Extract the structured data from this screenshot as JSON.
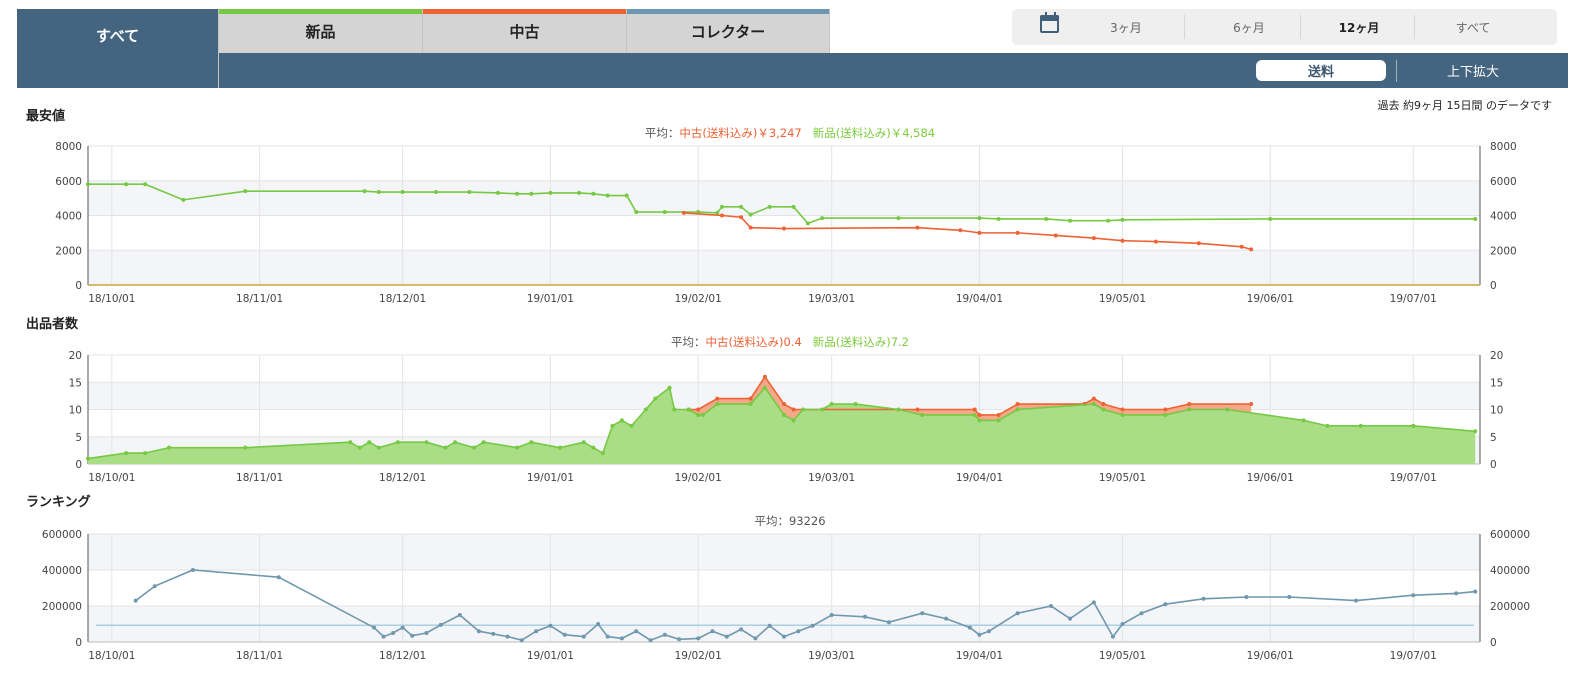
{
  "tabs": [
    {
      "label": "すべて",
      "color": "#446580"
    },
    {
      "label": "新品",
      "color": "#76c943"
    },
    {
      "label": "中古",
      "color": "#ee6234"
    },
    {
      "label": "コレクター",
      "color": "#6b98b0"
    }
  ],
  "period": {
    "items": [
      "3ヶ月",
      "6ヶ月",
      "12ヶ月",
      "すべて"
    ],
    "selected": "12ヶ月"
  },
  "toolbar": {
    "shipping_label": "送料",
    "zoom_label": "上下拡大"
  },
  "period_note": "過去 約9ヶ月 15日間 のデータです",
  "colors": {
    "new": "#76c943",
    "used": "#ee6234",
    "ranking": "#6f97ad",
    "avg_line": "#a9cfe0"
  },
  "sections": {
    "price": {
      "title": "最安値",
      "avg_prefix": "平均：",
      "avg_used": "中古(送料込み)￥3,247",
      "avg_new": "新品(送料込み)￥4,584"
    },
    "sellers": {
      "title": "出品者数",
      "avg_prefix": "平均：",
      "avg_used": "中古(送料込み)0.4",
      "avg_new": "新品(送料込み)7.2"
    },
    "ranking": {
      "title": "ランキング",
      "avg_text": "平均：93226"
    }
  },
  "chart_data": [
    {
      "type": "line",
      "title": "最安値",
      "x_type": "date",
      "x_ticks": [
        "2018-10-01",
        "2018-11-01",
        "2018-12-01",
        "2019-01-01",
        "2019-02-01",
        "2019-03-01",
        "2019-04-01",
        "2019-05-01",
        "2019-06-01",
        "2019-07-01"
      ],
      "x_tick_labels": [
        "18/10/01",
        "18/11/01",
        "18/12/01",
        "19/01/01",
        "19/02/01",
        "19/03/01",
        "19/04/01",
        "19/05/01",
        "19/06/01",
        "19/07/01"
      ],
      "xlim": [
        "2018-09-26",
        "2019-07-15"
      ],
      "ylim": [
        0,
        8000
      ],
      "y_ticks": [
        0,
        2000,
        4000,
        6000,
        8000
      ],
      "grid": true,
      "series": [
        {
          "name": "新品(送料込み)",
          "color": "#76c943",
          "points": [
            [
              "2018-09-26",
              5800
            ],
            [
              "2018-10-04",
              5800
            ],
            [
              "2018-10-08",
              5800
            ],
            [
              "2018-10-16",
              4900
            ],
            [
              "2018-10-29",
              5400
            ],
            [
              "2018-11-23",
              5400
            ],
            [
              "2018-11-26",
              5350
            ],
            [
              "2018-12-01",
              5350
            ],
            [
              "2018-12-08",
              5350
            ],
            [
              "2018-12-15",
              5350
            ],
            [
              "2018-12-21",
              5300
            ],
            [
              "2018-12-25",
              5250
            ],
            [
              "2018-12-28",
              5250
            ],
            [
              "2019-01-01",
              5300
            ],
            [
              "2019-01-07",
              5300
            ],
            [
              "2019-01-10",
              5250
            ],
            [
              "2019-01-13",
              5150
            ],
            [
              "2019-01-17",
              5150
            ],
            [
              "2019-01-19",
              4200
            ],
            [
              "2019-01-25",
              4200
            ],
            [
              "2019-02-01",
              4200
            ],
            [
              "2019-02-05",
              4150
            ],
            [
              "2019-02-06",
              4500
            ],
            [
              "2019-02-10",
              4500
            ],
            [
              "2019-02-12",
              4050
            ],
            [
              "2019-02-16",
              4500
            ],
            [
              "2019-02-21",
              4500
            ],
            [
              "2019-02-24",
              3550
            ],
            [
              "2019-02-27",
              3850
            ],
            [
              "2019-03-15",
              3850
            ],
            [
              "2019-04-01",
              3850
            ],
            [
              "2019-04-05",
              3800
            ],
            [
              "2019-04-15",
              3800
            ],
            [
              "2019-04-20",
              3700
            ],
            [
              "2019-04-28",
              3700
            ],
            [
              "2019-05-01",
              3750
            ],
            [
              "2019-06-01",
              3800
            ],
            [
              "2019-07-14",
              3800
            ]
          ]
        },
        {
          "name": "中古(送料込み)",
          "color": "#ee6234",
          "points": [
            [
              "2019-01-29",
              4150
            ],
            [
              "2019-02-06",
              4000
            ],
            [
              "2019-02-10",
              3900
            ],
            [
              "2019-02-12",
              3300
            ],
            [
              "2019-02-19",
              3250
            ],
            [
              "2019-03-19",
              3300
            ],
            [
              "2019-03-28",
              3150
            ],
            [
              "2019-04-01",
              3000
            ],
            [
              "2019-04-09",
              3000
            ],
            [
              "2019-04-17",
              2850
            ],
            [
              "2019-04-25",
              2700
            ],
            [
              "2019-05-01",
              2550
            ],
            [
              "2019-05-08",
              2500
            ],
            [
              "2019-05-17",
              2400
            ],
            [
              "2019-05-26",
              2200
            ],
            [
              "2019-05-28",
              2050
            ]
          ]
        }
      ]
    },
    {
      "type": "area",
      "title": "出品者数",
      "x_type": "date",
      "x_ticks": [
        "2018-10-01",
        "2018-11-01",
        "2018-12-01",
        "2019-01-01",
        "2019-02-01",
        "2019-03-01",
        "2019-04-01",
        "2019-05-01",
        "2019-06-01",
        "2019-07-01"
      ],
      "x_tick_labels": [
        "18/10/01",
        "18/11/01",
        "18/12/01",
        "19/01/01",
        "19/02/01",
        "19/03/01",
        "19/04/01",
        "19/05/01",
        "19/06/01",
        "19/07/01"
      ],
      "xlim": [
        "2018-09-26",
        "2019-07-15"
      ],
      "ylim": [
        0,
        20
      ],
      "y_ticks": [
        0,
        5,
        10,
        15,
        20
      ],
      "grid": true,
      "series": [
        {
          "name": "新品(送料込み)",
          "color": "#76c943",
          "stack": "base",
          "points": [
            [
              "2018-09-26",
              1
            ],
            [
              "2018-10-04",
              2
            ],
            [
              "2018-10-08",
              2
            ],
            [
              "2018-10-13",
              3
            ],
            [
              "2018-10-29",
              3
            ],
            [
              "2018-11-20",
              4
            ],
            [
              "2018-11-22",
              3
            ],
            [
              "2018-11-24",
              4
            ],
            [
              "2018-11-26",
              3
            ],
            [
              "2018-11-30",
              4
            ],
            [
              "2018-12-06",
              4
            ],
            [
              "2018-12-10",
              3
            ],
            [
              "2018-12-12",
              4
            ],
            [
              "2018-12-16",
              3
            ],
            [
              "2018-12-18",
              4
            ],
            [
              "2018-12-25",
              3
            ],
            [
              "2018-12-28",
              4
            ],
            [
              "2019-01-03",
              3
            ],
            [
              "2019-01-08",
              4
            ],
            [
              "2019-01-10",
              3
            ],
            [
              "2019-01-12",
              2
            ],
            [
              "2019-01-14",
              7
            ],
            [
              "2019-01-16",
              8
            ],
            [
              "2019-01-18",
              7
            ],
            [
              "2019-01-21",
              10
            ],
            [
              "2019-01-23",
              12
            ],
            [
              "2019-01-26",
              14
            ],
            [
              "2019-01-27",
              10
            ],
            [
              "2019-01-30",
              10
            ],
            [
              "2019-02-01",
              9
            ],
            [
              "2019-02-02",
              9
            ],
            [
              "2019-02-05",
              11
            ],
            [
              "2019-02-12",
              11
            ],
            [
              "2019-02-15",
              14
            ],
            [
              "2019-02-19",
              9
            ],
            [
              "2019-02-21",
              8
            ],
            [
              "2019-02-23",
              10
            ],
            [
              "2019-02-27",
              10
            ],
            [
              "2019-03-01",
              11
            ],
            [
              "2019-03-06",
              11
            ],
            [
              "2019-03-15",
              10
            ],
            [
              "2019-03-20",
              9
            ],
            [
              "2019-03-31",
              9
            ],
            [
              "2019-04-01",
              8
            ],
            [
              "2019-04-05",
              8
            ],
            [
              "2019-04-09",
              10
            ],
            [
              "2019-04-25",
              11
            ],
            [
              "2019-04-27",
              10
            ],
            [
              "2019-05-01",
              9
            ],
            [
              "2019-05-10",
              9
            ],
            [
              "2019-05-15",
              10
            ],
            [
              "2019-05-23",
              10
            ],
            [
              "2019-06-08",
              8
            ],
            [
              "2019-06-13",
              7
            ],
            [
              "2019-06-20",
              7
            ],
            [
              "2019-07-01",
              7
            ],
            [
              "2019-07-14",
              6
            ]
          ]
        },
        {
          "name": "中古(送料込み)",
          "color": "#ee6234",
          "stack": "total",
          "points": [
            [
              "2019-01-30",
              10
            ],
            [
              "2019-02-01",
              10
            ],
            [
              "2019-02-05",
              12
            ],
            [
              "2019-02-12",
              12
            ],
            [
              "2019-02-15",
              16
            ],
            [
              "2019-02-19",
              11
            ],
            [
              "2019-02-21",
              10
            ],
            [
              "2019-03-19",
              10
            ],
            [
              "2019-03-31",
              10
            ],
            [
              "2019-04-01",
              9
            ],
            [
              "2019-04-05",
              9
            ],
            [
              "2019-04-09",
              11
            ],
            [
              "2019-04-23",
              11
            ],
            [
              "2019-04-25",
              12
            ],
            [
              "2019-04-27",
              11
            ],
            [
              "2019-05-01",
              10
            ],
            [
              "2019-05-10",
              10
            ],
            [
              "2019-05-15",
              11
            ],
            [
              "2019-05-28",
              11
            ]
          ]
        }
      ]
    },
    {
      "type": "line",
      "title": "ランキング",
      "x_type": "date",
      "x_ticks": [
        "2018-10-01",
        "2018-11-01",
        "2018-12-01",
        "2019-01-01",
        "2019-02-01",
        "2019-03-01",
        "2019-04-01",
        "2019-05-01",
        "2019-06-01",
        "2019-07-01"
      ],
      "x_tick_labels": [
        "18/10/01",
        "18/11/01",
        "18/12/01",
        "19/01/01",
        "19/02/01",
        "19/03/01",
        "19/04/01",
        "19/05/01",
        "19/06/01",
        "19/07/01"
      ],
      "xlim": [
        "2018-09-26",
        "2019-07-15"
      ],
      "ylim": [
        0,
        600000
      ],
      "y_ticks": [
        0,
        200000,
        400000,
        600000
      ],
      "grid": true,
      "average": 93226,
      "series": [
        {
          "name": "ランキング",
          "color": "#6f97ad",
          "points": [
            [
              "2018-10-06",
              230000
            ],
            [
              "2018-10-10",
              310000
            ],
            [
              "2018-10-18",
              400000
            ],
            [
              "2018-11-05",
              360000
            ],
            [
              "2018-11-25",
              80000
            ],
            [
              "2018-11-27",
              30000
            ],
            [
              "2018-11-29",
              50000
            ],
            [
              "2018-12-01",
              80000
            ],
            [
              "2018-12-03",
              35000
            ],
            [
              "2018-12-06",
              50000
            ],
            [
              "2018-12-09",
              95000
            ],
            [
              "2018-12-13",
              150000
            ],
            [
              "2018-12-17",
              60000
            ],
            [
              "2018-12-20",
              45000
            ],
            [
              "2018-12-23",
              30000
            ],
            [
              "2018-12-26",
              10000
            ],
            [
              "2018-12-29",
              60000
            ],
            [
              "2019-01-01",
              90000
            ],
            [
              "2019-01-04",
              40000
            ],
            [
              "2019-01-08",
              30000
            ],
            [
              "2019-01-11",
              100000
            ],
            [
              "2019-01-13",
              30000
            ],
            [
              "2019-01-16",
              20000
            ],
            [
              "2019-01-19",
              60000
            ],
            [
              "2019-01-22",
              10000
            ],
            [
              "2019-01-25",
              40000
            ],
            [
              "2019-01-28",
              15000
            ],
            [
              "2019-02-01",
              20000
            ],
            [
              "2019-02-04",
              60000
            ],
            [
              "2019-02-07",
              30000
            ],
            [
              "2019-02-10",
              70000
            ],
            [
              "2019-02-13",
              20000
            ],
            [
              "2019-02-16",
              90000
            ],
            [
              "2019-02-19",
              30000
            ],
            [
              "2019-02-22",
              60000
            ],
            [
              "2019-02-25",
              90000
            ],
            [
              "2019-03-01",
              150000
            ],
            [
              "2019-03-08",
              140000
            ],
            [
              "2019-03-13",
              110000
            ],
            [
              "2019-03-20",
              160000
            ],
            [
              "2019-03-25",
              130000
            ],
            [
              "2019-03-30",
              80000
            ],
            [
              "2019-04-01",
              40000
            ],
            [
              "2019-04-03",
              60000
            ],
            [
              "2019-04-09",
              160000
            ],
            [
              "2019-04-16",
              200000
            ],
            [
              "2019-04-20",
              130000
            ],
            [
              "2019-04-25",
              220000
            ],
            [
              "2019-04-29",
              30000
            ],
            [
              "2019-05-01",
              100000
            ],
            [
              "2019-05-05",
              160000
            ],
            [
              "2019-05-10",
              210000
            ],
            [
              "2019-05-18",
              240000
            ],
            [
              "2019-05-27",
              250000
            ],
            [
              "2019-06-05",
              250000
            ],
            [
              "2019-06-19",
              230000
            ],
            [
              "2019-07-01",
              260000
            ],
            [
              "2019-07-10",
              270000
            ],
            [
              "2019-07-14",
              280000
            ]
          ]
        }
      ]
    }
  ]
}
